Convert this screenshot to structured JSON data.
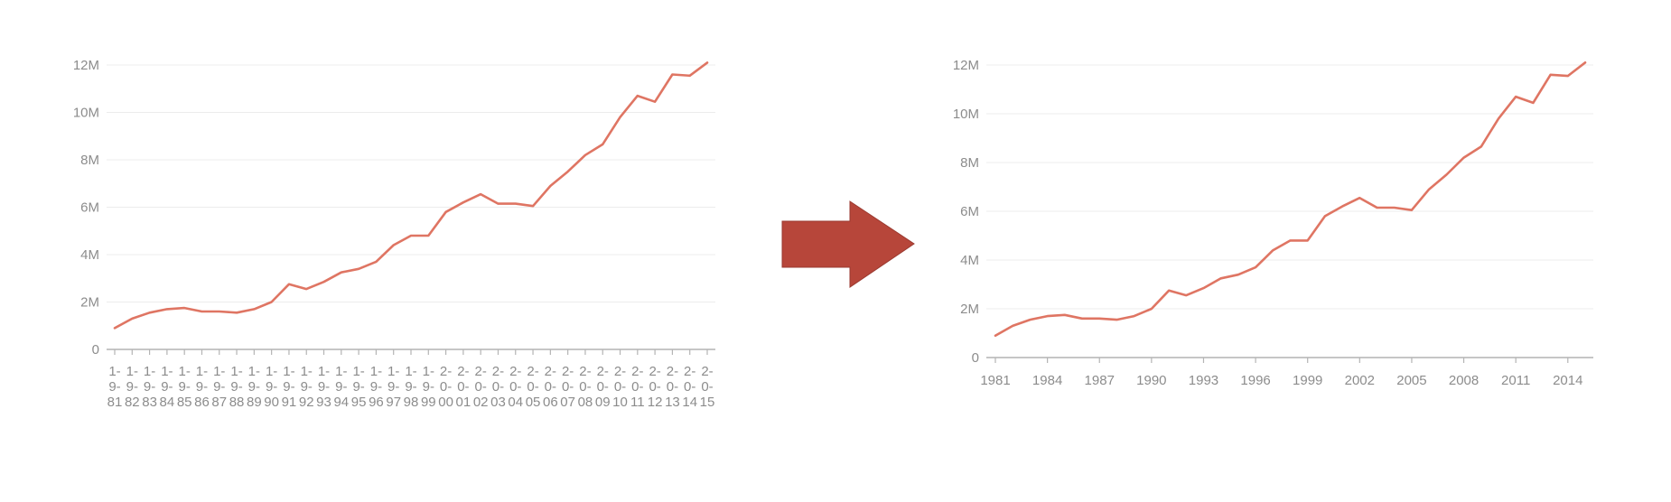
{
  "colors": {
    "series": "#df7563",
    "arrow": "#b7463a",
    "arrow_dark": "#9a3a30"
  },
  "arrow_icon": "right-arrow-icon",
  "chart_data": [
    {
      "type": "line",
      "title": "",
      "xlabel": "",
      "ylabel": "",
      "grid": true,
      "ylim": [
        0,
        12000000
      ],
      "y_ticks": [
        0,
        2000000,
        4000000,
        6000000,
        8000000,
        10000000,
        12000000
      ],
      "y_tick_labels": [
        "0",
        "2M",
        "4M",
        "6M",
        "8M",
        "10M",
        "12M"
      ],
      "x_tick_mode": "every-year-stacked",
      "x_tick_labels": [
        [
          "1-",
          "9-",
          "81"
        ],
        [
          "1-",
          "9-",
          "82"
        ],
        [
          "1-",
          "9-",
          "83"
        ],
        [
          "1-",
          "9-",
          "84"
        ],
        [
          "1-",
          "9-",
          "85"
        ],
        [
          "1-",
          "9-",
          "86"
        ],
        [
          "1-",
          "9-",
          "87"
        ],
        [
          "1-",
          "9-",
          "88"
        ],
        [
          "1-",
          "9-",
          "89"
        ],
        [
          "1-",
          "9-",
          "90"
        ],
        [
          "1-",
          "9-",
          "91"
        ],
        [
          "1-",
          "9-",
          "92"
        ],
        [
          "1-",
          "9-",
          "93"
        ],
        [
          "1-",
          "9-",
          "94"
        ],
        [
          "1-",
          "9-",
          "95"
        ],
        [
          "1-",
          "9-",
          "96"
        ],
        [
          "1-",
          "9-",
          "97"
        ],
        [
          "1-",
          "9-",
          "98"
        ],
        [
          "1-",
          "9-",
          "99"
        ],
        [
          "2-",
          "0-",
          "00"
        ],
        [
          "2-",
          "0-",
          "01"
        ],
        [
          "2-",
          "0-",
          "02"
        ],
        [
          "2-",
          "0-",
          "03"
        ],
        [
          "2-",
          "0-",
          "04"
        ],
        [
          "2-",
          "0-",
          "05"
        ],
        [
          "2-",
          "0-",
          "06"
        ],
        [
          "2-",
          "0-",
          "07"
        ],
        [
          "2-",
          "0-",
          "08"
        ],
        [
          "2-",
          "0-",
          "09"
        ],
        [
          "2-",
          "0-",
          "10"
        ],
        [
          "2-",
          "0-",
          "11"
        ],
        [
          "2-",
          "0-",
          "12"
        ],
        [
          "2-",
          "0-",
          "13"
        ],
        [
          "2-",
          "0-",
          "14"
        ],
        [
          "2-",
          "0-",
          "15"
        ]
      ],
      "x": [
        1981,
        1982,
        1983,
        1984,
        1985,
        1986,
        1987,
        1988,
        1989,
        1990,
        1991,
        1992,
        1993,
        1994,
        1995,
        1996,
        1997,
        1998,
        1999,
        2000,
        2001,
        2002,
        2003,
        2004,
        2005,
        2006,
        2007,
        2008,
        2009,
        2010,
        2011,
        2012,
        2013,
        2014,
        2015
      ],
      "series": [
        {
          "values": [
            900000,
            1300000,
            1550000,
            1700000,
            1750000,
            1600000,
            1600000,
            1550000,
            1700000,
            2000000,
            2750000,
            2550000,
            2850000,
            3250000,
            3400000,
            3700000,
            4400000,
            4800000,
            4800000,
            5800000,
            6200000,
            6550000,
            6150000,
            6150000,
            6050000,
            6900000,
            7500000,
            8200000,
            8650000,
            9800000,
            10700000,
            10450000,
            11600000,
            11550000,
            12100000
          ]
        }
      ]
    },
    {
      "type": "line",
      "title": "",
      "xlabel": "",
      "ylabel": "",
      "grid": true,
      "ylim": [
        0,
        12000000
      ],
      "y_ticks": [
        0,
        2000000,
        4000000,
        6000000,
        8000000,
        10000000,
        12000000
      ],
      "y_tick_labels": [
        "0",
        "2M",
        "4M",
        "6M",
        "8M",
        "10M",
        "12M"
      ],
      "x_tick_mode": "every-third-year",
      "x_tick_labels": [
        "1981",
        "1984",
        "1987",
        "1990",
        "1993",
        "1996",
        "1999",
        "2002",
        "2005",
        "2008",
        "2011",
        "2014"
      ],
      "x_tick_values": [
        1981,
        1984,
        1987,
        1990,
        1993,
        1996,
        1999,
        2002,
        2005,
        2008,
        2011,
        2014
      ],
      "x": [
        1981,
        1982,
        1983,
        1984,
        1985,
        1986,
        1987,
        1988,
        1989,
        1990,
        1991,
        1992,
        1993,
        1994,
        1995,
        1996,
        1997,
        1998,
        1999,
        2000,
        2001,
        2002,
        2003,
        2004,
        2005,
        2006,
        2007,
        2008,
        2009,
        2010,
        2011,
        2012,
        2013,
        2014,
        2015
      ],
      "series": [
        {
          "values": [
            900000,
            1300000,
            1550000,
            1700000,
            1750000,
            1600000,
            1600000,
            1550000,
            1700000,
            2000000,
            2750000,
            2550000,
            2850000,
            3250000,
            3400000,
            3700000,
            4400000,
            4800000,
            4800000,
            5800000,
            6200000,
            6550000,
            6150000,
            6150000,
            6050000,
            6900000,
            7500000,
            8200000,
            8650000,
            9800000,
            10700000,
            10450000,
            11600000,
            11550000,
            12100000
          ]
        }
      ]
    }
  ]
}
